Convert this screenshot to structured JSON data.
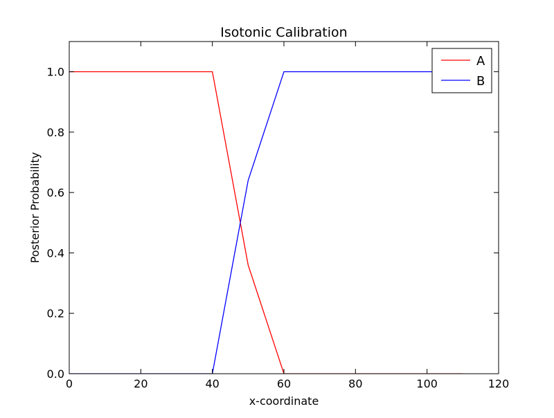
{
  "chart_data": {
    "type": "line",
    "title": "Isotonic Calibration",
    "xlabel": "x-coordinate",
    "ylabel": "Posterior Probability",
    "xlim": [
      0,
      120
    ],
    "ylim": [
      0.0,
      1.1
    ],
    "xticks": [
      0,
      20,
      40,
      60,
      80,
      100,
      120
    ],
    "xtick_labels": [
      "0",
      "20",
      "40",
      "60",
      "80",
      "100",
      "120"
    ],
    "yticks": [
      0.0,
      0.2,
      0.4,
      0.6,
      0.8,
      1.0
    ],
    "ytick_labels": [
      "0.0",
      "0.2",
      "0.4",
      "0.6",
      "0.8",
      "1.0"
    ],
    "grid": false,
    "legend_position": "top-right",
    "series": [
      {
        "name": "A",
        "color": "#ff0000",
        "x": [
          0,
          40,
          50,
          60,
          110
        ],
        "y": [
          1.0,
          1.0,
          0.36,
          0.0,
          0.0
        ]
      },
      {
        "name": "B",
        "color": "#0000ff",
        "x": [
          0,
          40,
          50,
          60,
          110
        ],
        "y": [
          0.0,
          0.0,
          0.64,
          1.0,
          1.0
        ]
      }
    ]
  }
}
